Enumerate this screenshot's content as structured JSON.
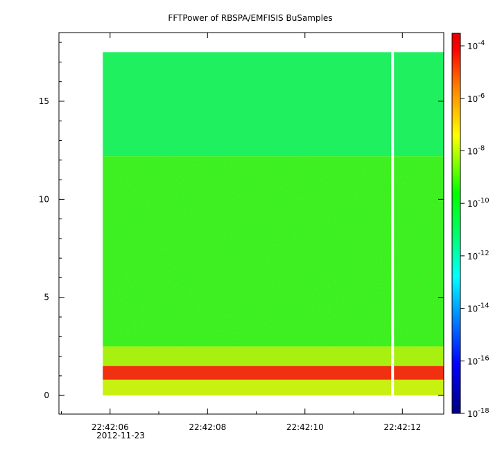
{
  "chart_data": {
    "type": "heatmap",
    "title": "FFTPower of RBSPA/EMFISIS  BuSamples",
    "xlabel": "",
    "ylabel": "",
    "x_ticks": [
      "22:42:06",
      "22:42:08",
      "22:42:10",
      "22:42:12"
    ],
    "x_tick_values_s": [
      6,
      8,
      10,
      12
    ],
    "x_date_label": "2012-11-23",
    "x_range_s": [
      4.95,
      12.85
    ],
    "data_x_range_s": [
      5.85,
      12.85
    ],
    "gap_x_s": 11.8,
    "y_ticks": [
      "0",
      "5",
      "10",
      "15"
    ],
    "y_tick_values": [
      0,
      5,
      10,
      15
    ],
    "ylim": [
      -0.95,
      18.5
    ],
    "data_y_range": [
      0,
      17.5
    ],
    "colorbar": {
      "scale": "log",
      "range": [
        1e-18,
        0.0003
      ],
      "tick_bases": [
        "10",
        "10",
        "10",
        "10",
        "10",
        "10",
        "10",
        "10"
      ],
      "tick_exponents": [
        "-4",
        "-6",
        "-8",
        "-10",
        "-12",
        "-14",
        "-16",
        "-18"
      ],
      "tick_values_log10": [
        -4,
        -6,
        -8,
        -10,
        -12,
        -14,
        -16,
        -18
      ],
      "colormap": [
        "#00007f",
        "#0000ff",
        "#00ffff",
        "#00ff00",
        "#ffff00",
        "#ff7f00",
        "#ff0000",
        "#c00000"
      ]
    },
    "bands": [
      {
        "y_range": [
          12.2,
          17.5
        ],
        "log10_power": -11.0,
        "color": "#1ef060"
      },
      {
        "y_range": [
          2.5,
          12.2
        ],
        "log10_power": -10.0,
        "color": "#3cf020"
      },
      {
        "y_range": [
          1.5,
          2.5
        ],
        "log10_power": -9.0,
        "color": "#a8f010"
      },
      {
        "y_range": [
          0.8,
          1.5
        ],
        "log10_power": -6.5,
        "color": "#f03010"
      },
      {
        "y_range": [
          0.0,
          0.8
        ],
        "log10_power": -9.0,
        "color": "#c8f010"
      }
    ]
  }
}
